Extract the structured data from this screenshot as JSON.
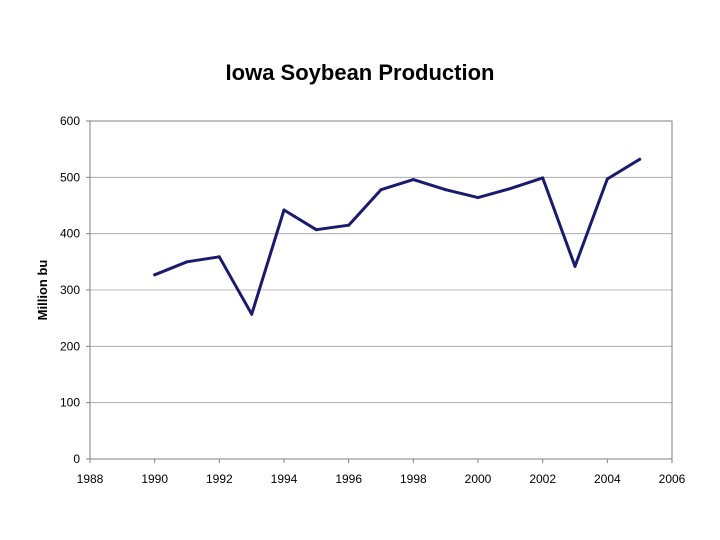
{
  "chart_data": {
    "type": "line",
    "title": "Iowa Soybean Production",
    "xlabel": "",
    "ylabel": "Million bu",
    "xlim": [
      1988,
      2006
    ],
    "ylim": [
      0,
      600
    ],
    "x_ticks": [
      1988,
      1990,
      1992,
      1994,
      1996,
      1998,
      2000,
      2002,
      2004,
      2006
    ],
    "y_ticks": [
      0,
      100,
      200,
      300,
      400,
      500,
      600
    ],
    "grid": "horizontal",
    "legend": "none",
    "series": [
      {
        "color": "#1a1a6e",
        "x": [
          1990,
          1991,
          1992,
          1993,
          1994,
          1995,
          1996,
          1997,
          1998,
          1999,
          2000,
          2001,
          2002,
          2003,
          2004,
          2005
        ],
        "y": [
          327,
          350,
          359,
          257,
          442,
          407,
          415,
          478,
          496,
          478,
          464,
          480,
          499,
          342,
          497,
          532
        ]
      }
    ]
  }
}
